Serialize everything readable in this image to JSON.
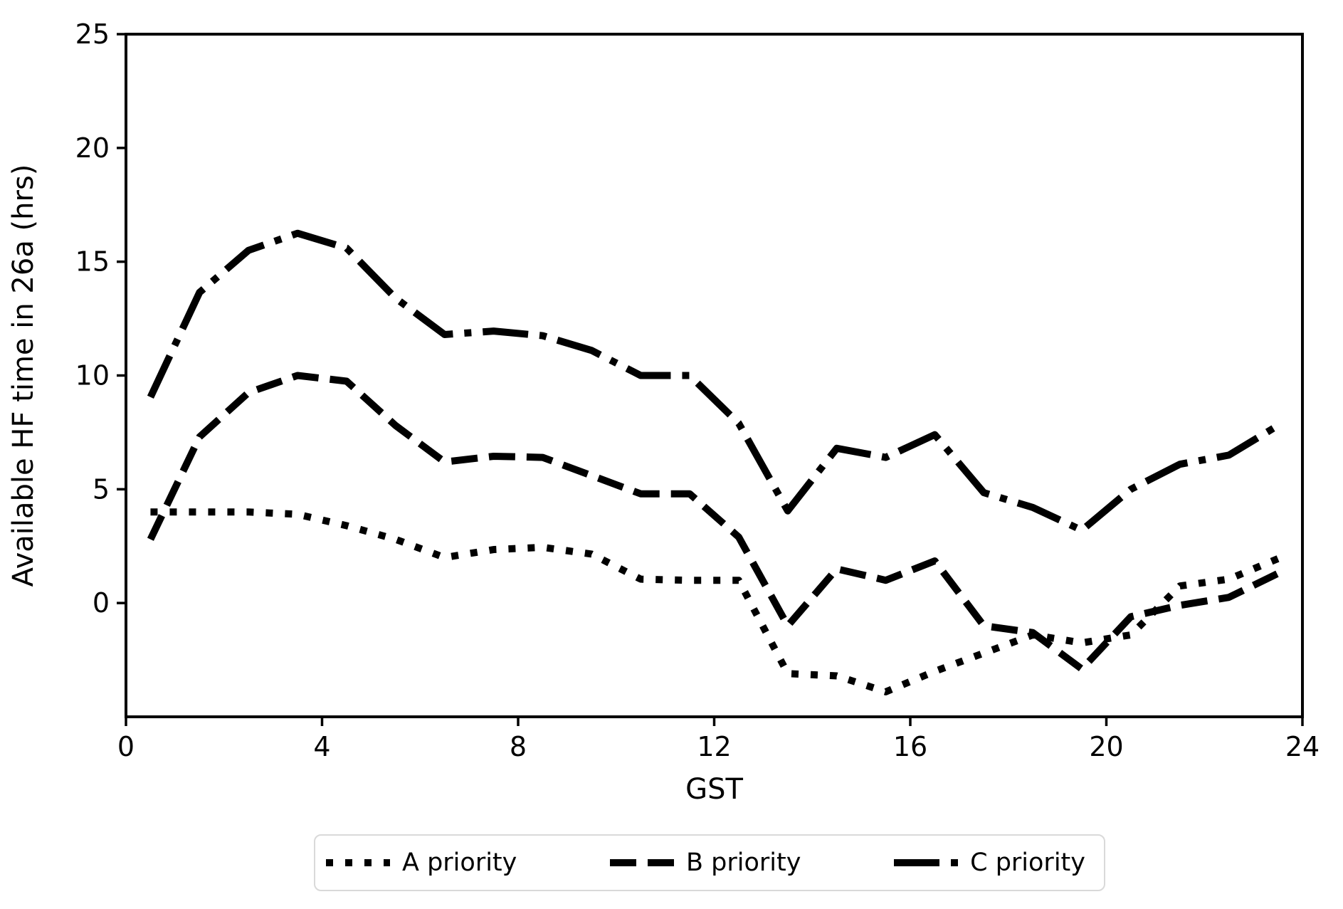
{
  "chart_data": {
    "type": "line",
    "title": "",
    "xlabel": "GST",
    "ylabel": "Available HF time in 26a (hrs)",
    "xlim": [
      0,
      24
    ],
    "ylim": [
      -5,
      25
    ],
    "xticks": [
      0,
      4,
      8,
      12,
      16,
      20,
      24
    ],
    "yticks": [
      0,
      5,
      10,
      15,
      20,
      25
    ],
    "grid": false,
    "legend_position": "bottom-center-outside",
    "line_color": "#000000",
    "x": [
      0.5,
      1.5,
      2.5,
      3.5,
      4.5,
      5.5,
      6.5,
      7.5,
      8.5,
      9.5,
      10.5,
      11.5,
      12.5,
      13.5,
      14.5,
      15.5,
      16.5,
      17.5,
      18.5,
      19.5,
      20.5,
      21.5,
      22.5,
      23.5
    ],
    "series": [
      {
        "name": "A priority",
        "linestyle": "dotted",
        "values": [
          4.0,
          4.0,
          4.0,
          3.9,
          3.4,
          2.8,
          2.0,
          2.35,
          2.45,
          2.15,
          1.05,
          1.0,
          1.0,
          -3.1,
          -3.2,
          -3.9,
          -3.0,
          -2.2,
          -1.4,
          -1.75,
          -1.4,
          0.75,
          1.05,
          1.95
        ]
      },
      {
        "name": "B priority",
        "linestyle": "dashed",
        "values": [
          2.8,
          7.3,
          9.25,
          10.0,
          9.75,
          7.8,
          6.2,
          6.45,
          6.4,
          5.6,
          4.8,
          4.8,
          2.9,
          -1.0,
          1.5,
          1.0,
          1.85,
          -1.0,
          -1.3,
          -2.9,
          -0.6,
          -0.1,
          0.25,
          1.3
        ]
      },
      {
        "name": "C priority",
        "linestyle": "dashdot",
        "values": [
          9.05,
          13.65,
          15.5,
          16.25,
          15.6,
          13.4,
          11.8,
          11.95,
          11.75,
          11.1,
          10.0,
          10.0,
          7.9,
          4.05,
          6.8,
          6.4,
          7.4,
          4.85,
          4.2,
          3.2,
          5.0,
          6.1,
          6.5,
          7.8
        ]
      }
    ]
  }
}
